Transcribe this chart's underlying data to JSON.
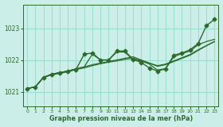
{
  "title": "Graphe pression niveau de la mer (hPa)",
  "bg_color": "#cceee8",
  "grid_color": "#99ddcc",
  "line_color": "#2d6a2d",
  "marker_color": "#2d6a2d",
  "xlim": [
    -0.5,
    23.5
  ],
  "ylim": [
    1020.55,
    1023.75
  ],
  "yticks": [
    1021,
    1022,
    1023
  ],
  "xticks": [
    0,
    1,
    2,
    3,
    4,
    5,
    6,
    7,
    8,
    9,
    10,
    11,
    12,
    13,
    14,
    15,
    16,
    17,
    18,
    19,
    20,
    21,
    22,
    23
  ],
  "series": [
    {
      "x": [
        0,
        1,
        2,
        3,
        4,
        5,
        6,
        7,
        8,
        9,
        10,
        11,
        12,
        13,
        14,
        15,
        16,
        17,
        18,
        19,
        20,
        21,
        22,
        23
      ],
      "y": [
        1021.1,
        1021.15,
        1021.45,
        1021.55,
        1021.6,
        1021.65,
        1021.7,
        1021.75,
        1021.82,
        1021.88,
        1021.93,
        1021.97,
        1022.02,
        1022.05,
        1021.98,
        1021.9,
        1021.82,
        1021.87,
        1021.97,
        1022.07,
        1022.17,
        1022.32,
        1022.45,
        1022.58
      ],
      "has_markers": false,
      "lw": 0.9
    },
    {
      "x": [
        0,
        1,
        2,
        3,
        4,
        5,
        6,
        7,
        8,
        9,
        10,
        11,
        12,
        13,
        14,
        15,
        16,
        17,
        18,
        19,
        20,
        21,
        22,
        23
      ],
      "y": [
        1021.1,
        1021.15,
        1021.45,
        1021.55,
        1021.6,
        1021.65,
        1021.72,
        1021.78,
        1021.85,
        1021.9,
        1021.95,
        1022.0,
        1022.05,
        1022.1,
        1022.0,
        1021.9,
        1021.8,
        1021.85,
        1021.95,
        1022.05,
        1022.15,
        1022.3,
        1022.45,
        1022.58
      ],
      "has_markers": false,
      "lw": 0.9
    },
    {
      "x": [
        0,
        1,
        2,
        3,
        4,
        5,
        6,
        7,
        8,
        9,
        10,
        11,
        12,
        13,
        14,
        15,
        16,
        17,
        18,
        19,
        20,
        21,
        22,
        23
      ],
      "y": [
        1021.1,
        1021.15,
        1021.45,
        1021.55,
        1021.6,
        1021.65,
        1021.72,
        1021.78,
        1022.18,
        1022.0,
        1022.0,
        1022.25,
        1022.25,
        1022.0,
        1021.97,
        1021.87,
        1021.68,
        1021.73,
        1022.1,
        1022.2,
        1022.28,
        1022.48,
        1022.58,
        1022.65
      ],
      "has_markers": false,
      "lw": 0.9
    },
    {
      "x": [
        0,
        1,
        2,
        3,
        4,
        5,
        6,
        7,
        8,
        9,
        10,
        11,
        12,
        13,
        14,
        15,
        16,
        17,
        18,
        19,
        20,
        21,
        22,
        23
      ],
      "y": [
        1021.1,
        1021.15,
        1021.45,
        1021.53,
        1021.58,
        1021.63,
        1021.7,
        1022.18,
        1022.22,
        1022.0,
        1022.0,
        1022.28,
        1022.28,
        1022.02,
        1021.92,
        1021.75,
        1021.65,
        1021.72,
        1022.15,
        1022.22,
        1022.32,
        1022.52,
        1023.08,
        1023.28
      ],
      "has_markers": true,
      "lw": 1.0
    }
  ]
}
